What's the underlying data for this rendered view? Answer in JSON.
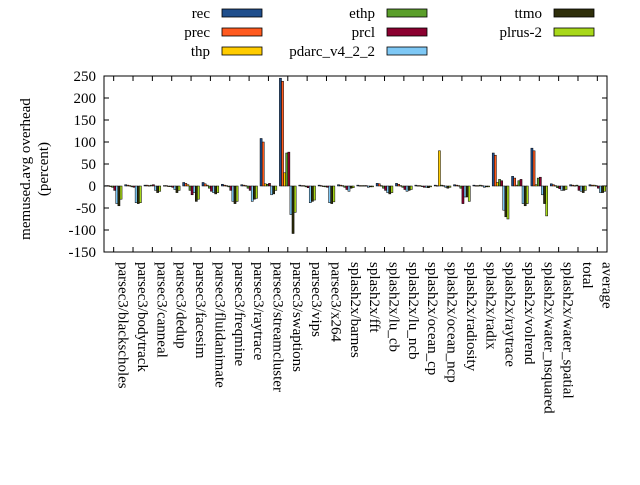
{
  "chart_data": {
    "type": "bar",
    "ylabel": "memused.avg overhead\n(percent)",
    "ylim": [
      -150,
      250
    ],
    "yticks": [
      -150,
      -100,
      -50,
      0,
      50,
      100,
      150,
      200,
      250
    ],
    "grid": false,
    "legend_position": "top",
    "categories": [
      "parsec3/blackscholes",
      "parsec3/bodytrack",
      "parsec3/canneal",
      "parsec3/dedup",
      "parsec3/facesim",
      "parsec3/fluidanimate",
      "parsec3/freqmine",
      "parsec3/raytrace",
      "parsec3/streamcluster",
      "parsec3/swaptions",
      "parsec3/vips",
      "parsec3/x264",
      "splash2x/barnes",
      "splash2x/fft",
      "splash2x/lu_cb",
      "splash2x/lu_ncb",
      "splash2x/ocean_cp",
      "splash2x/ocean_ncp",
      "splash2x/radiosity",
      "splash2x/radix",
      "splash2x/raytrace",
      "splash2x/volrend",
      "splash2x/water_nsquared",
      "splash2x/water_spatial",
      "total",
      "average"
    ],
    "series": [
      {
        "name": "rec",
        "color": "#1f4e8c",
        "values": [
          1,
          3,
          2,
          1,
          8,
          8,
          4,
          3,
          108,
          245,
          2,
          2,
          3,
          2,
          6,
          6,
          2,
          2,
          3,
          2,
          75,
          22,
          86,
          5,
          3,
          3
        ]
      },
      {
        "name": "prec",
        "color": "#ff5a1f",
        "values": [
          1,
          2,
          2,
          1,
          6,
          5,
          2,
          2,
          100,
          238,
          1,
          1,
          2,
          1,
          5,
          4,
          1,
          1,
          2,
          1,
          70,
          18,
          80,
          3,
          2,
          2
        ]
      },
      {
        "name": "thp",
        "color": "#ffcc00",
        "values": [
          0,
          1,
          1,
          0,
          3,
          2,
          1,
          1,
          5,
          30,
          1,
          0,
          1,
          1,
          1,
          1,
          1,
          80,
          1,
          1,
          8,
          2,
          3,
          1,
          1,
          2
        ]
      },
      {
        "name": "ethp",
        "color": "#5a9e2a",
        "values": [
          -3,
          -2,
          2,
          -1,
          -10,
          -5,
          -2,
          -5,
          4,
          75,
          -2,
          -2,
          -3,
          1,
          -5,
          -3,
          -1,
          2,
          -5,
          2,
          15,
          12,
          18,
          -4,
          2,
          1
        ]
      },
      {
        "name": "prcl",
        "color": "#8b0030",
        "values": [
          -10,
          -3,
          3,
          -3,
          -20,
          -12,
          -10,
          -10,
          6,
          77,
          -4,
          -3,
          -8,
          1,
          -10,
          -8,
          -3,
          1,
          -40,
          1,
          12,
          15,
          20,
          -6,
          -10,
          -5
        ]
      },
      {
        "name": "pdarc_v4_2_2",
        "color": "#7ec8f5",
        "values": [
          -40,
          -38,
          -10,
          -8,
          -15,
          -15,
          -35,
          -35,
          -20,
          -65,
          -38,
          -38,
          -12,
          -3,
          -15,
          -12,
          -3,
          -3,
          -25,
          -3,
          -55,
          -40,
          -20,
          -10,
          -12,
          -15
        ]
      },
      {
        "name": "ttmo",
        "color": "#2e2e0a",
        "values": [
          -45,
          -40,
          -15,
          -15,
          -35,
          -18,
          -40,
          -30,
          -18,
          -108,
          -35,
          -40,
          -5,
          -2,
          -18,
          -10,
          -4,
          -5,
          -25,
          -2,
          -70,
          -45,
          -40,
          -10,
          -15,
          -15
        ]
      },
      {
        "name": "plrus-2",
        "color": "#a8d81a",
        "values": [
          -30,
          -38,
          -12,
          -10,
          -30,
          -15,
          -35,
          -28,
          -10,
          -60,
          -32,
          -36,
          -4,
          -2,
          -15,
          -8,
          -2,
          -3,
          -35,
          -2,
          -75,
          -40,
          -68,
          -8,
          -10,
          -12
        ]
      }
    ]
  }
}
